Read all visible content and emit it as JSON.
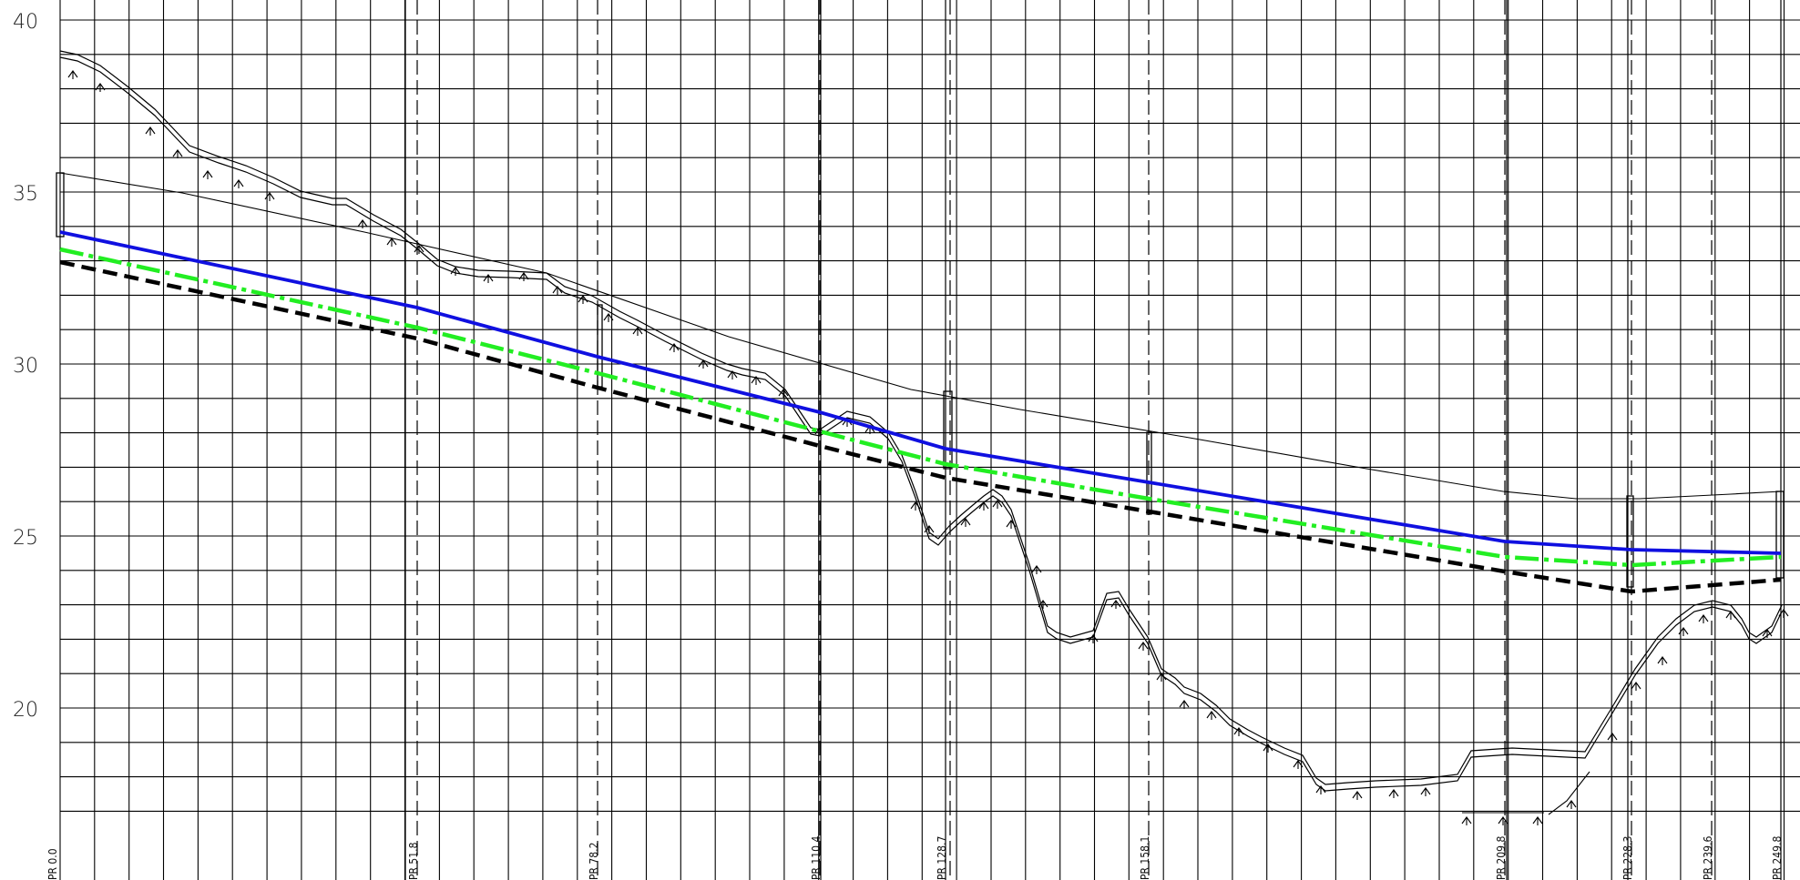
{
  "drawing": {
    "y_axis_labels": [
      "40",
      "35",
      "30",
      "25",
      "20"
    ],
    "chainage_labels": [
      "PR 0.0",
      "PR 51.8",
      "PR 78.2",
      "PR 110.4",
      "PR 128.7",
      "PR 158.1",
      "PR 209.8",
      "PR 228.3",
      "PR 239.6",
      "PR 249.8"
    ],
    "line_colors": {
      "blue_line": "#1010e0",
      "green_dashdot_line": "#22ee22",
      "black_dashed_line": "#000000",
      "grid": "#000000"
    }
  }
}
